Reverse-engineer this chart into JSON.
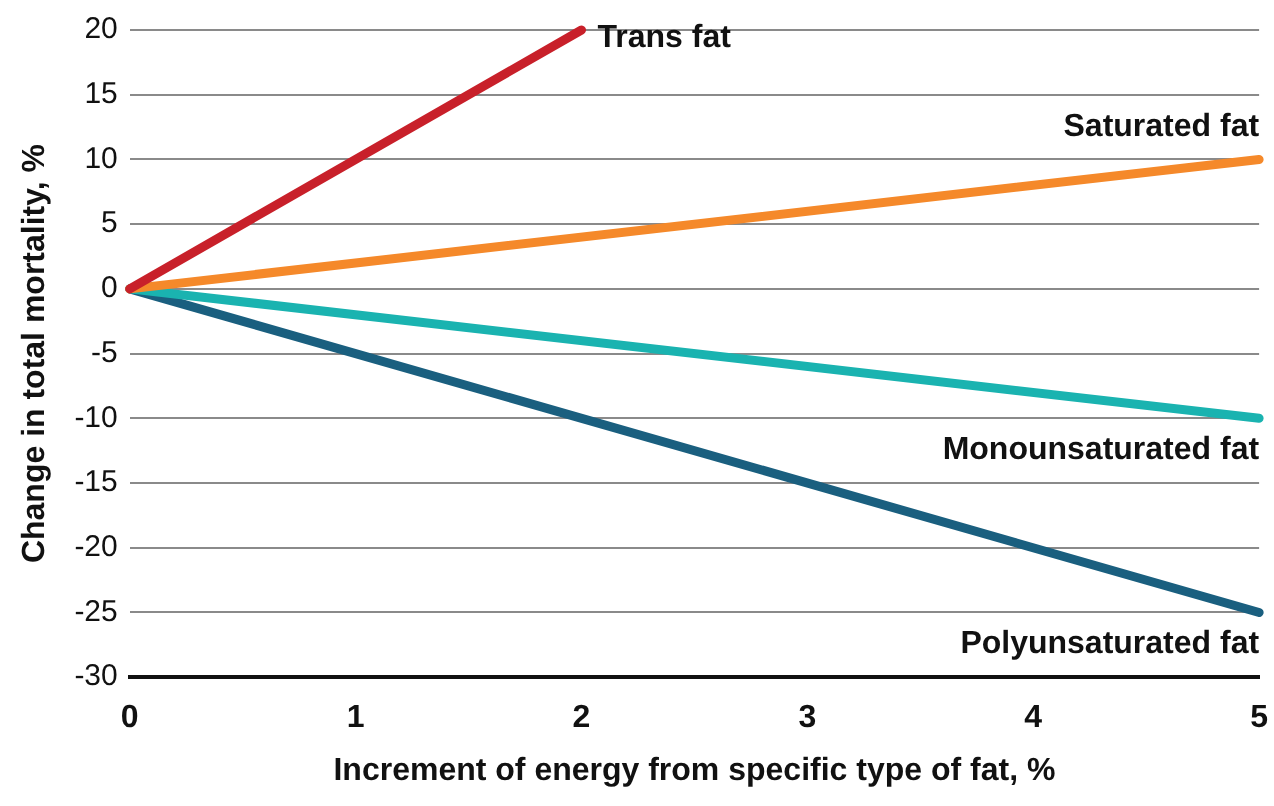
{
  "chart_data": {
    "type": "line",
    "xlabel": "Increment of energy from specific type of fat, %",
    "ylabel": "Change in total mortality, %",
    "xlim": [
      0,
      5
    ],
    "xticks": [
      0,
      1,
      2,
      3,
      4,
      5
    ],
    "ylim": [
      -30,
      20
    ],
    "yticks": [
      -30,
      -25,
      -20,
      -15,
      -10,
      -5,
      0,
      5,
      10,
      15,
      20
    ],
    "grid": "y",
    "legend": false,
    "marker": "none",
    "line_style": "solid",
    "series": [
      {
        "name": "Trans fat",
        "color": "#c8202a",
        "x": [
          0,
          2
        ],
        "values": [
          0,
          20
        ]
      },
      {
        "name": "Saturated fat",
        "color": "#f5892a",
        "x": [
          0,
          5
        ],
        "values": [
          0,
          10
        ]
      },
      {
        "name": "Monounsaturated fat",
        "color": "#1ab3b0",
        "x": [
          0,
          5
        ],
        "values": [
          0,
          -10
        ]
      },
      {
        "name": "Polyunsaturated fat",
        "color": "#1a5f7f",
        "x": [
          0,
          5
        ],
        "values": [
          0,
          -25
        ]
      }
    ]
  }
}
